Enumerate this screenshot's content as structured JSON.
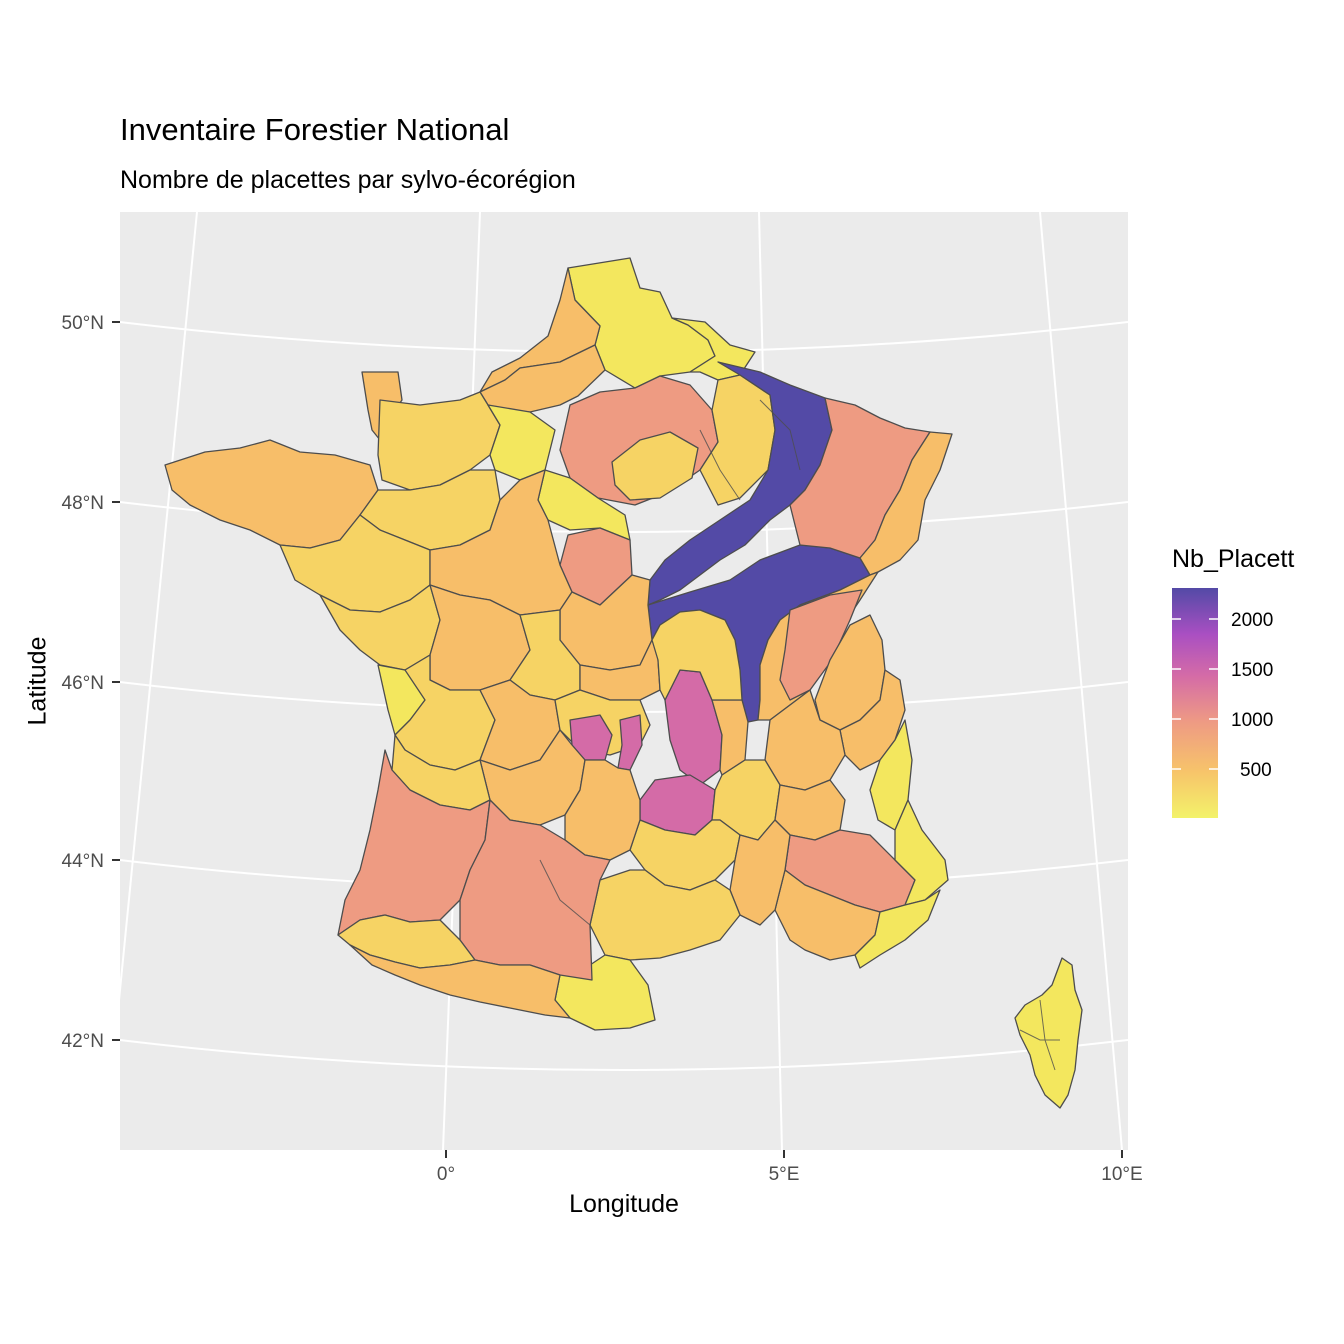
{
  "title": "Inventaire Forestier National",
  "subtitle": "Nombre de placettes par sylvo-écorégion",
  "axes": {
    "xlabel": "Longitude",
    "ylabel": "Latitude",
    "x_ticks": [
      "0°",
      "5°E",
      "10°E"
    ],
    "y_ticks": [
      "50°N",
      "48°N",
      "46°N",
      "44°N",
      "42°N"
    ]
  },
  "legend": {
    "title": "Nb_Placett",
    "breaks": [
      "2000",
      "1500",
      "1000",
      "500"
    ],
    "break_values": [
      2000,
      1500,
      1000,
      500
    ],
    "min": 50,
    "max": 2300,
    "palette": [
      "#F0F921",
      "#FDB32F",
      "#E16462",
      "#B12A90",
      "#6A00A8",
      "#2A0593"
    ]
  },
  "colors": {
    "panel": "#EBEBEB",
    "grid": "#FFFFFF",
    "region_border": "#4D4D4D",
    "very_low": "#F3E75E",
    "low": "#F6D364",
    "mid_low": "#F7BE69",
    "mid": "#EE9B82",
    "high": "#D46BA7",
    "max": "#534AA6"
  },
  "regions_note": "Sylvo-écorégions de France métropolitaine et Corse"
}
